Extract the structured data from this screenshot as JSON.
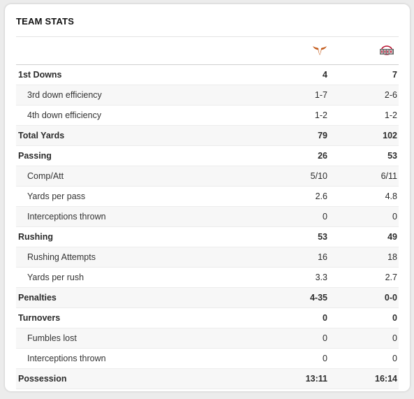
{
  "section_title": "TEAM STATS",
  "teams": {
    "home": {
      "icon": "longhorn-logo-icon",
      "color": "#c35a1a"
    },
    "away": {
      "icon": "ohio-state-logo-icon",
      "color": "#b8102f"
    }
  },
  "rows": [
    {
      "label": "1st Downs",
      "home": "4",
      "away": "7",
      "type": "main"
    },
    {
      "label": "3rd down efficiency",
      "home": "1-7",
      "away": "2-6",
      "type": "sub"
    },
    {
      "label": "4th down efficiency",
      "home": "1-2",
      "away": "1-2",
      "type": "sub"
    },
    {
      "label": "Total Yards",
      "home": "79",
      "away": "102",
      "type": "main"
    },
    {
      "label": "Passing",
      "home": "26",
      "away": "53",
      "type": "main"
    },
    {
      "label": "Comp/Att",
      "home": "5/10",
      "away": "6/11",
      "type": "sub"
    },
    {
      "label": "Yards per pass",
      "home": "2.6",
      "away": "4.8",
      "type": "sub"
    },
    {
      "label": "Interceptions thrown",
      "home": "0",
      "away": "0",
      "type": "sub"
    },
    {
      "label": "Rushing",
      "home": "53",
      "away": "49",
      "type": "main"
    },
    {
      "label": "Rushing Attempts",
      "home": "16",
      "away": "18",
      "type": "sub"
    },
    {
      "label": "Yards per rush",
      "home": "3.3",
      "away": "2.7",
      "type": "sub"
    },
    {
      "label": "Penalties",
      "home": "4-35",
      "away": "0-0",
      "type": "main"
    },
    {
      "label": "Turnovers",
      "home": "0",
      "away": "0",
      "type": "main"
    },
    {
      "label": "Fumbles lost",
      "home": "0",
      "away": "0",
      "type": "sub"
    },
    {
      "label": "Interceptions thrown",
      "home": "0",
      "away": "0",
      "type": "sub"
    },
    {
      "label": "Possession",
      "home": "13:11",
      "away": "16:14",
      "type": "main"
    }
  ]
}
